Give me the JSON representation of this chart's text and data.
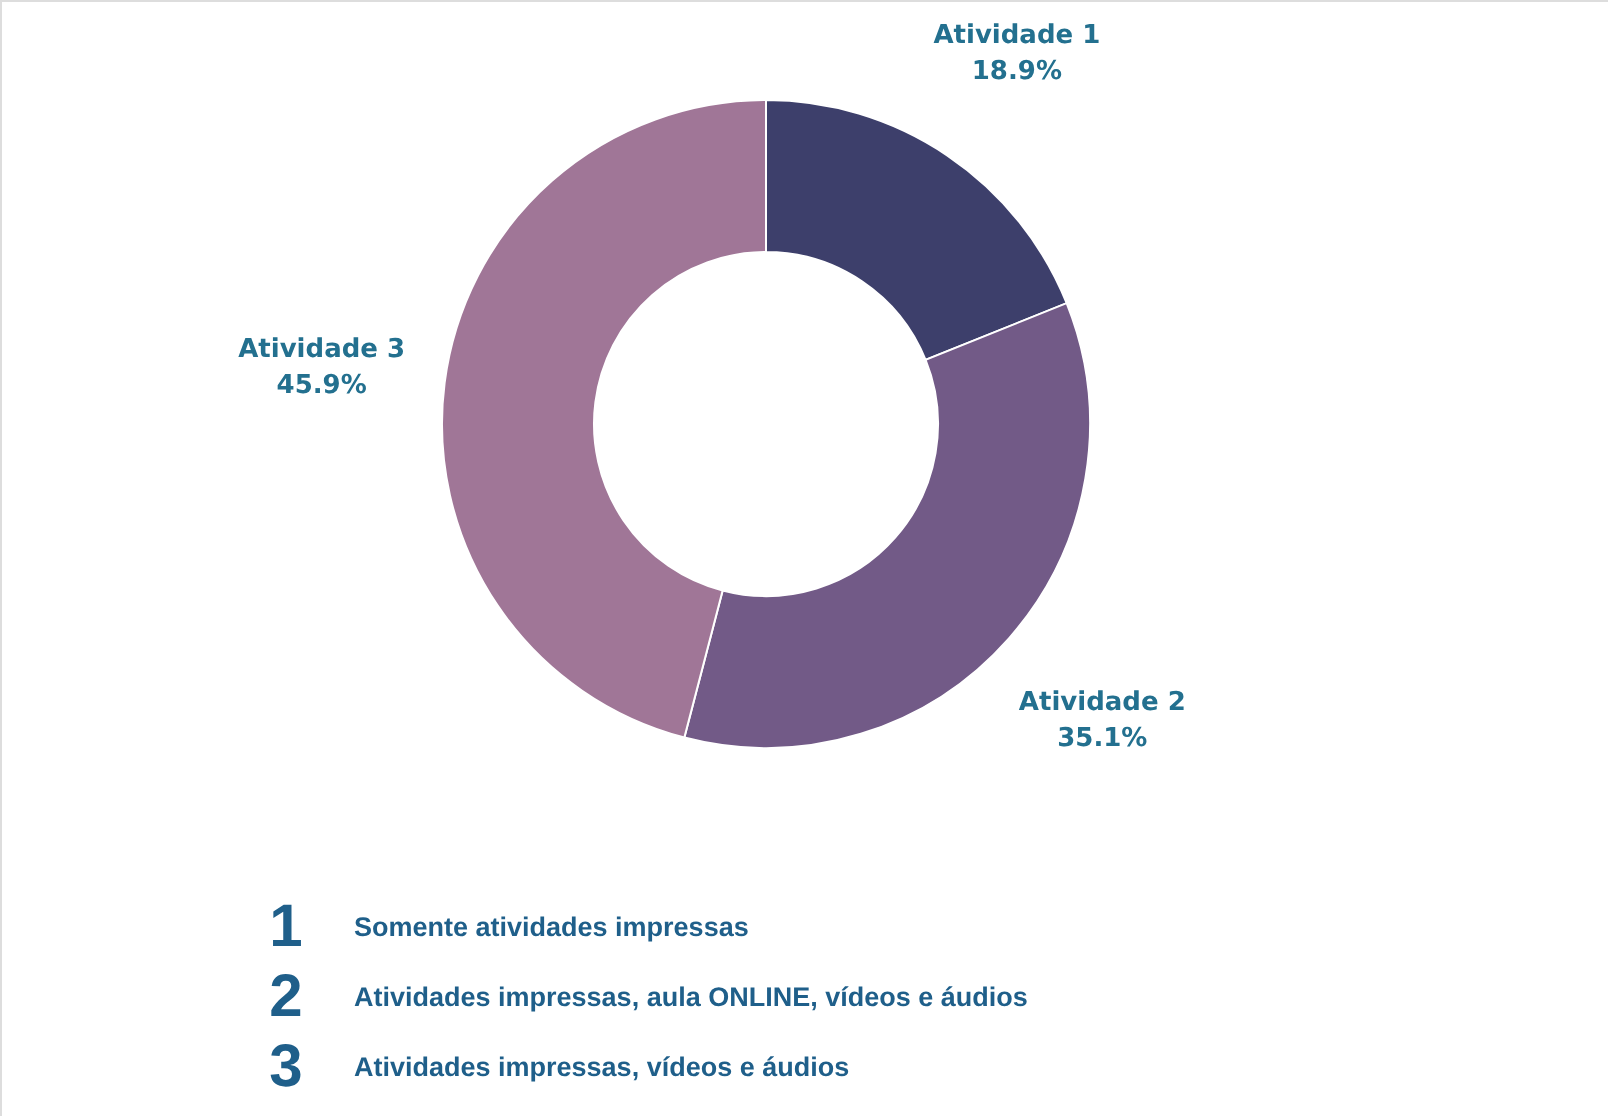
{
  "chart_data": {
    "type": "donut",
    "categories": [
      "Atividade 1",
      "Atividade 2",
      "Atividade 3"
    ],
    "values": [
      18.9,
      35.1,
      45.9
    ],
    "value_labels": [
      "18.9%",
      "35.1%",
      "45.9%"
    ],
    "colors": [
      "#3d3f6b",
      "#725a87",
      "#a07697"
    ],
    "annotations": [
      "1",
      "Somente atividades impressas",
      "2",
      "Atividades impressas, aula ONLINE, vídeos e áudios",
      "3",
      "Atividades impressas, vídeos e áudios"
    ]
  }
}
